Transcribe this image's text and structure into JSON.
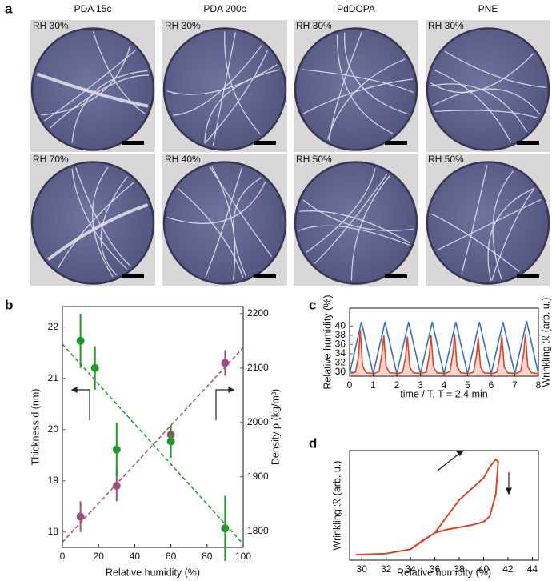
{
  "panel_labels": [
    "a",
    "b",
    "c",
    "d"
  ],
  "panel_a": {
    "columns": [
      "PDA 15c",
      "PDA 200c",
      "PdDOPA",
      "PNE"
    ],
    "rows": [
      [
        "RH 30%",
        "RH 30%",
        "RH 30%",
        "RH 30%"
      ],
      [
        "RH 70%",
        "RH 40%",
        "RH 50%",
        "RH 50%"
      ]
    ]
  },
  "chart_data": [
    {
      "type": "scatter",
      "xlabel": "Relative humidity (%)",
      "ylabel": "Thickness d (nm)",
      "y2label": "Density ρ (kg/m³)",
      "xlim": [
        0,
        100
      ],
      "xticks": [
        0,
        20,
        40,
        60,
        80,
        100
      ],
      "ylim": [
        17.7,
        22.4
      ],
      "yticks": [
        18,
        19,
        20,
        21,
        22
      ],
      "y2lim": [
        1770,
        2213
      ],
      "y2ticks": [
        1800,
        1900,
        2000,
        2100,
        2200
      ],
      "series": [
        {
          "color": "#9c4f7f",
          "x": [
            10,
            30,
            60,
            90
          ],
          "values": [
            18.3,
            18.9,
            19.9,
            21.3
          ],
          "errors": [
            0.3,
            0.3,
            0.1,
            0.25
          ]
        },
        {
          "color": "#22962a",
          "axis": "y2",
          "x": [
            10,
            18,
            30,
            60,
            90
          ],
          "values": [
            2150,
            2100,
            1950,
            1965,
            1805
          ],
          "errors": [
            50,
            40,
            50,
            30,
            60
          ]
        }
      ],
      "fit_lines": [
        {
          "color": "#9c4f7f",
          "x": [
            0,
            100
          ],
          "values": [
            17.8,
            21.6
          ]
        },
        {
          "color": "#22962a",
          "axis": "y2",
          "x": [
            0,
            100
          ],
          "values": [
            2144,
            1776
          ]
        }
      ]
    },
    {
      "type": "line",
      "xlabel": "time / T,   T = 2.4 min",
      "ylabel": "Relative humidity (%)",
      "y2label": "Wrinkling ℛ (arb. u.)",
      "xlim": [
        0,
        8
      ],
      "xticks": [
        0,
        1,
        2,
        3,
        4,
        5,
        6,
        7,
        8
      ],
      "ylim": [
        29.1,
        43.9
      ],
      "yticks": [
        30,
        32,
        34,
        36,
        38,
        40
      ],
      "y2lim": [
        0,
        1
      ],
      "series": [
        {
          "color": "#3d6fb5",
          "x": [
            0,
            0.5,
            1,
            1.5,
            2,
            2.5,
            3,
            3.5,
            4,
            4.5,
            5,
            5.5,
            6,
            6.5,
            7,
            7.5,
            8
          ],
          "values": [
            29.6,
            40.9,
            29.6,
            40.9,
            29.6,
            40.9,
            29.6,
            40.9,
            29.6,
            40.9,
            29.6,
            40.9,
            29.6,
            40.9,
            29.6,
            41.1,
            29.6
          ]
        },
        {
          "color": "#d4462b",
          "axis": "y2",
          "area": true,
          "x": [
            0.05,
            0.25,
            0.38,
            0.45,
            0.55,
            0.7,
            1.05,
            1.25,
            1.38,
            1.45,
            1.55,
            1.7,
            2.05,
            2.25,
            2.38,
            2.45,
            2.55,
            2.7,
            3.05,
            3.25,
            3.38,
            3.45,
            3.55,
            3.7,
            4.05,
            4.25,
            4.38,
            4.45,
            4.55,
            4.7,
            5.05,
            5.25,
            5.38,
            5.45,
            5.55,
            5.7,
            6.05,
            6.25,
            6.38,
            6.45,
            6.55,
            6.7,
            7.05,
            7.25,
            7.38,
            7.45,
            7.55,
            7.7,
            8
          ],
          "values": [
            0.04,
            0.06,
            0.3,
            0.68,
            0.15,
            0.05,
            0.04,
            0.07,
            0.35,
            0.6,
            0.14,
            0.05,
            0.04,
            0.06,
            0.3,
            0.58,
            0.13,
            0.05,
            0.04,
            0.06,
            0.32,
            0.6,
            0.14,
            0.05,
            0.04,
            0.07,
            0.34,
            0.62,
            0.15,
            0.05,
            0.04,
            0.06,
            0.31,
            0.57,
            0.13,
            0.05,
            0.04,
            0.06,
            0.33,
            0.61,
            0.14,
            0.05,
            0.04,
            0.07,
            0.35,
            0.62,
            0.14,
            0.05,
            0.04
          ]
        }
      ]
    },
    {
      "type": "line",
      "xlabel": "Relative humidity (%)",
      "ylabel": "Wrinkling ℛ (arb. u.)",
      "xlim": [
        29,
        44.5
      ],
      "xticks": [
        30,
        32,
        34,
        36,
        38,
        40,
        42,
        44
      ],
      "ylim": [
        0,
        1
      ],
      "series": [
        {
          "color": "#d4462b",
          "x": [
            29.5,
            32,
            34,
            36,
            37,
            38,
            39,
            40,
            40.5,
            41,
            41.2,
            41,
            40.5,
            40,
            39,
            38,
            37,
            36,
            35,
            34,
            32,
            29.5
          ],
          "values": [
            0.05,
            0.06,
            0.1,
            0.25,
            0.4,
            0.55,
            0.65,
            0.75,
            0.85,
            0.92,
            0.9,
            0.6,
            0.4,
            0.35,
            0.32,
            0.3,
            0.28,
            0.25,
            0.18,
            0.1,
            0.06,
            0.05
          ]
        }
      ]
    }
  ]
}
